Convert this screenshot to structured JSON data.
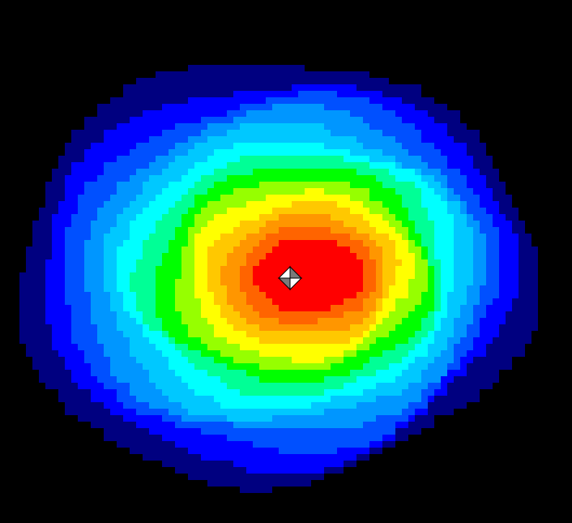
{
  "chart_data": {
    "type": "heatmap",
    "title": "",
    "xlabel": "",
    "ylabel": "",
    "grid": false,
    "legend": "none",
    "background_color": "#000000",
    "color_levels": [
      {
        "level": 1,
        "color": "#000080"
      },
      {
        "level": 2,
        "color": "#0000ff"
      },
      {
        "level": 3,
        "color": "#0050ff"
      },
      {
        "level": 4,
        "color": "#0096ff"
      },
      {
        "level": 5,
        "color": "#00c8ff"
      },
      {
        "level": 6,
        "color": "#00ffff"
      },
      {
        "level": 7,
        "color": "#00ff96"
      },
      {
        "level": 8,
        "color": "#00ff00"
      },
      {
        "level": 9,
        "color": "#96ff00"
      },
      {
        "level": 10,
        "color": "#ffff00"
      },
      {
        "level": 11,
        "color": "#ffc800"
      },
      {
        "level": 12,
        "color": "#ff9600"
      },
      {
        "level": 13,
        "color": "#ff6400"
      },
      {
        "level": 14,
        "color": "#ff0000"
      }
    ],
    "peak_marker": {
      "icon": "crosshair-diamond-icon"
    }
  }
}
